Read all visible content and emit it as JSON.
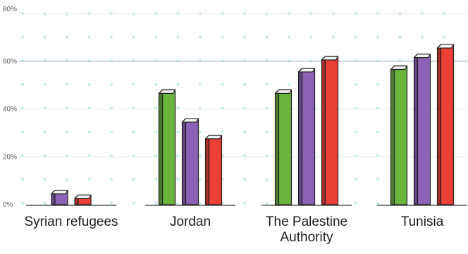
{
  "chart_data": {
    "type": "bar",
    "categories": [
      "Syrian refugees",
      "Jordan",
      "The Palestine Authority",
      "Tunisia"
    ],
    "category_lines": [
      [
        "Syrian refugees"
      ],
      [
        "Jordan"
      ],
      [
        "The Palestine",
        "Authority"
      ],
      [
        "Tunisia"
      ]
    ],
    "series": [
      {
        "color": "#6ab43c",
        "values": [
          null,
          48,
          48,
          58
        ]
      },
      {
        "color": "#8a63b5",
        "values": [
          6,
          36,
          57,
          63
        ]
      },
      {
        "color": "#ea4036",
        "values": [
          4,
          29,
          62,
          67
        ]
      }
    ],
    "ylim": [
      0,
      80
    ],
    "yticks": [
      0,
      20,
      40,
      60,
      80
    ],
    "ytick_labels": [
      "0%",
      "20%",
      "40%",
      "60%",
      "80%"
    ],
    "grid": true,
    "highlight_gridline": 60,
    "title": "",
    "xlabel": "",
    "ylabel": ""
  }
}
